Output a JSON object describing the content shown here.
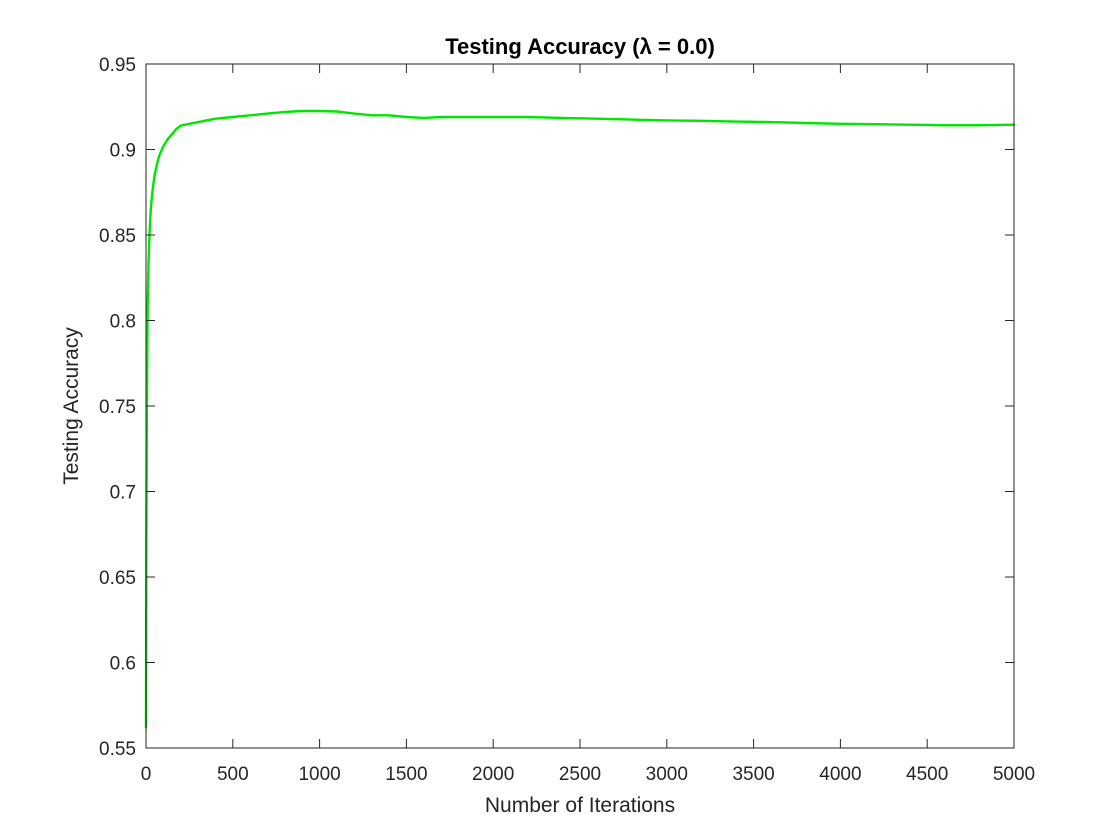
{
  "chart_data": {
    "type": "line",
    "title": "Testing Accuracy (λ = 0.0)",
    "xlabel": "Number of Iterations",
    "ylabel": "Testing Accuracy",
    "xlim": [
      0,
      5000
    ],
    "ylim": [
      0.55,
      0.95
    ],
    "xticks": [
      0,
      500,
      1000,
      1500,
      2000,
      2500,
      3000,
      3500,
      4000,
      4500,
      5000
    ],
    "xtick_labels": [
      "0",
      "500",
      "1000",
      "1500",
      "2000",
      "2500",
      "3000",
      "3500",
      "4000",
      "4500",
      "5000"
    ],
    "yticks": [
      0.55,
      0.6,
      0.65,
      0.7,
      0.75,
      0.8,
      0.85,
      0.9,
      0.95
    ],
    "ytick_labels": [
      "0.55",
      "0.6",
      "0.65",
      "0.7",
      "0.75",
      "0.8",
      "0.85",
      "0.9",
      "0.95"
    ],
    "grid": false,
    "series": [
      {
        "color": "#00e600",
        "x": [
          0,
          2,
          5,
          8,
          10,
          15,
          20,
          25,
          30,
          40,
          50,
          60,
          75,
          100,
          125,
          150,
          175,
          200,
          250,
          300,
          400,
          500,
          600,
          700,
          800,
          900,
          1000,
          1100,
          1200,
          1300,
          1400,
          1500,
          1600,
          1700,
          1800,
          1900,
          2000,
          2200,
          2400,
          2600,
          2800,
          3000,
          3200,
          3400,
          3600,
          3800,
          4000,
          4200,
          4400,
          4600,
          4800,
          5000
        ],
        "values": [
          0.562,
          0.66,
          0.75,
          0.79,
          0.81,
          0.835,
          0.85,
          0.86,
          0.868,
          0.878,
          0.885,
          0.89,
          0.896,
          0.902,
          0.906,
          0.909,
          0.912,
          0.914,
          0.915,
          0.916,
          0.918,
          0.919,
          0.92,
          0.921,
          0.922,
          0.9225,
          0.9225,
          0.9222,
          0.921,
          0.92,
          0.92,
          0.919,
          0.9185,
          0.919,
          0.919,
          0.919,
          0.919,
          0.919,
          0.9185,
          0.918,
          0.9175,
          0.917,
          0.9168,
          0.9163,
          0.916,
          0.9155,
          0.915,
          0.9148,
          0.9145,
          0.9142,
          0.9142,
          0.9145
        ]
      }
    ]
  }
}
